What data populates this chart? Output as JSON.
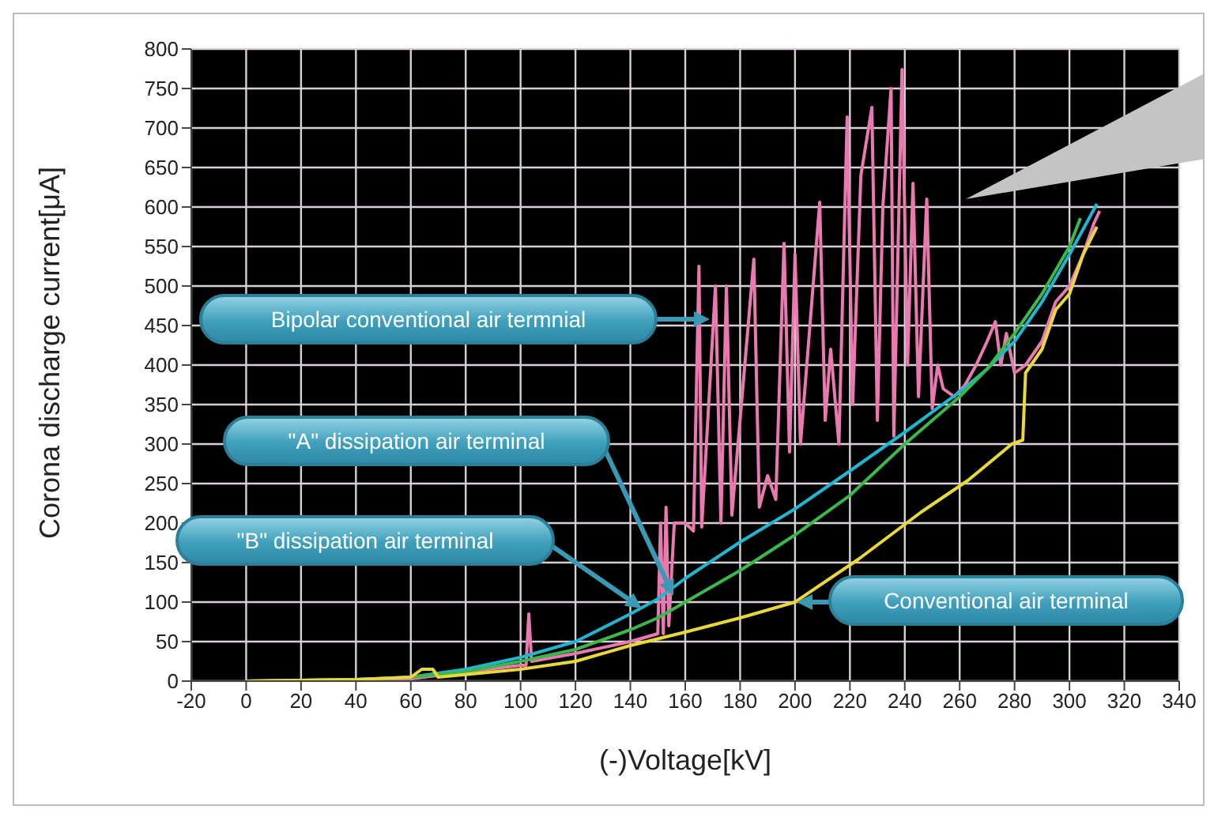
{
  "chart_data": {
    "type": "line",
    "xlabel": "(-)Voltage[kV]",
    "ylabel": "Corona discharge current[μA]",
    "xlim": [
      -20,
      340
    ],
    "xticks": [
      -20,
      0,
      20,
      40,
      60,
      80,
      100,
      120,
      140,
      160,
      180,
      200,
      220,
      240,
      260,
      280,
      300,
      320,
      340
    ],
    "ylim": [
      0,
      800
    ],
    "yticks": [
      0,
      50,
      100,
      150,
      200,
      250,
      300,
      350,
      400,
      450,
      500,
      550,
      600,
      650,
      700,
      750,
      800
    ],
    "grid": true,
    "marker": "none",
    "legend": false,
    "series": [
      {
        "name": "Bipolar conventional air termnial",
        "color": "#e87ab0",
        "x": [
          0,
          60,
          100,
          102,
          103,
          104,
          120,
          140,
          150,
          151,
          152,
          153,
          154,
          156,
          160,
          163,
          165,
          166,
          171,
          173,
          175,
          177,
          185,
          187,
          190,
          193,
          196,
          198,
          200,
          202,
          209,
          211,
          213,
          216,
          219,
          221,
          224,
          228,
          230,
          232,
          235,
          236,
          239,
          241,
          243,
          245,
          248,
          250,
          252,
          254,
          258,
          262,
          266,
          270,
          273,
          275,
          277,
          280,
          284,
          290,
          295,
          300,
          305,
          309,
          311
        ],
        "values": [
          0,
          3,
          20,
          20,
          85,
          25,
          35,
          50,
          60,
          200,
          60,
          220,
          70,
          200,
          200,
          190,
          525,
          195,
          500,
          200,
          500,
          210,
          534,
          220,
          260,
          230,
          554,
          290,
          540,
          300,
          606,
          330,
          420,
          300,
          714,
          350,
          640,
          726,
          330,
          600,
          750,
          310,
          774,
          400,
          630,
          360,
          610,
          345,
          400,
          370,
          360,
          375,
          400,
          430,
          455,
          400,
          440,
          390,
          400,
          430,
          480,
          500,
          540,
          580,
          595
        ]
      },
      {
        "name": "\"A\" dissipation air terminal",
        "color": "#22b5d0",
        "x": [
          0,
          40,
          60,
          80,
          100,
          120,
          140,
          150,
          160,
          180,
          200,
          220,
          240,
          260,
          270,
          280,
          290,
          300,
          310
        ],
        "values": [
          0,
          2,
          5,
          15,
          30,
          50,
          85,
          104,
          130,
          176,
          218,
          266,
          315,
          366,
          395,
          430,
          480,
          540,
          604
        ]
      },
      {
        "name": "\"B\" dissipation air terminal",
        "color": "#3cb84a",
        "x": [
          0,
          40,
          60,
          80,
          100,
          120,
          140,
          150,
          160,
          180,
          200,
          220,
          240,
          260,
          270,
          280,
          290,
          300,
          304
        ],
        "values": [
          0,
          2,
          5,
          12,
          25,
          40,
          65,
          80,
          100,
          140,
          185,
          235,
          300,
          360,
          395,
          440,
          490,
          550,
          586
        ]
      },
      {
        "name": "Conventional air terminal",
        "color": "#e8d83a",
        "x": [
          0,
          40,
          60,
          64,
          68,
          70,
          100,
          120,
          140,
          160,
          180,
          200,
          223,
          246,
          263,
          279,
          283,
          284,
          290,
          295,
          300,
          305,
          310
        ],
        "values": [
          0,
          2,
          5,
          15,
          15,
          5,
          15,
          25,
          45,
          62,
          80,
          100,
          154,
          214,
          254,
          300,
          305,
          390,
          420,
          470,
          490,
          540,
          575
        ]
      }
    ]
  }
}
